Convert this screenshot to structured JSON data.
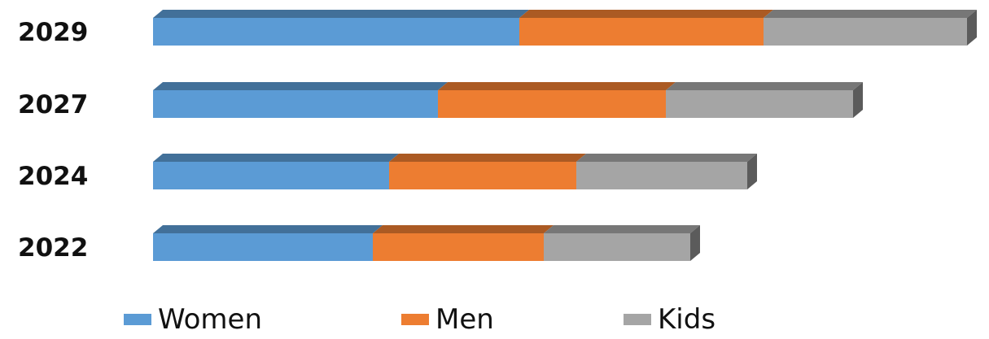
{
  "chart_data": {
    "type": "bar",
    "orientation": "horizontal",
    "stacked": true,
    "three_d": true,
    "title": "",
    "xlabel": "",
    "ylabel": "",
    "categories": [
      "2029",
      "2027",
      "2024",
      "2022"
    ],
    "series": [
      {
        "name": "Women",
        "color": "#5b9bd5",
        "values": [
          45,
          35,
          29,
          27
        ]
      },
      {
        "name": "Men",
        "color": "#ed7d31",
        "values": [
          30,
          28,
          23,
          21
        ]
      },
      {
        "name": "Kids",
        "color": "#a5a5a5",
        "values": [
          25,
          23,
          21,
          18
        ]
      }
    ],
    "xlim": [
      0,
      100
    ],
    "grid": false,
    "axis_values_shown": false,
    "legend_position": "bottom"
  }
}
